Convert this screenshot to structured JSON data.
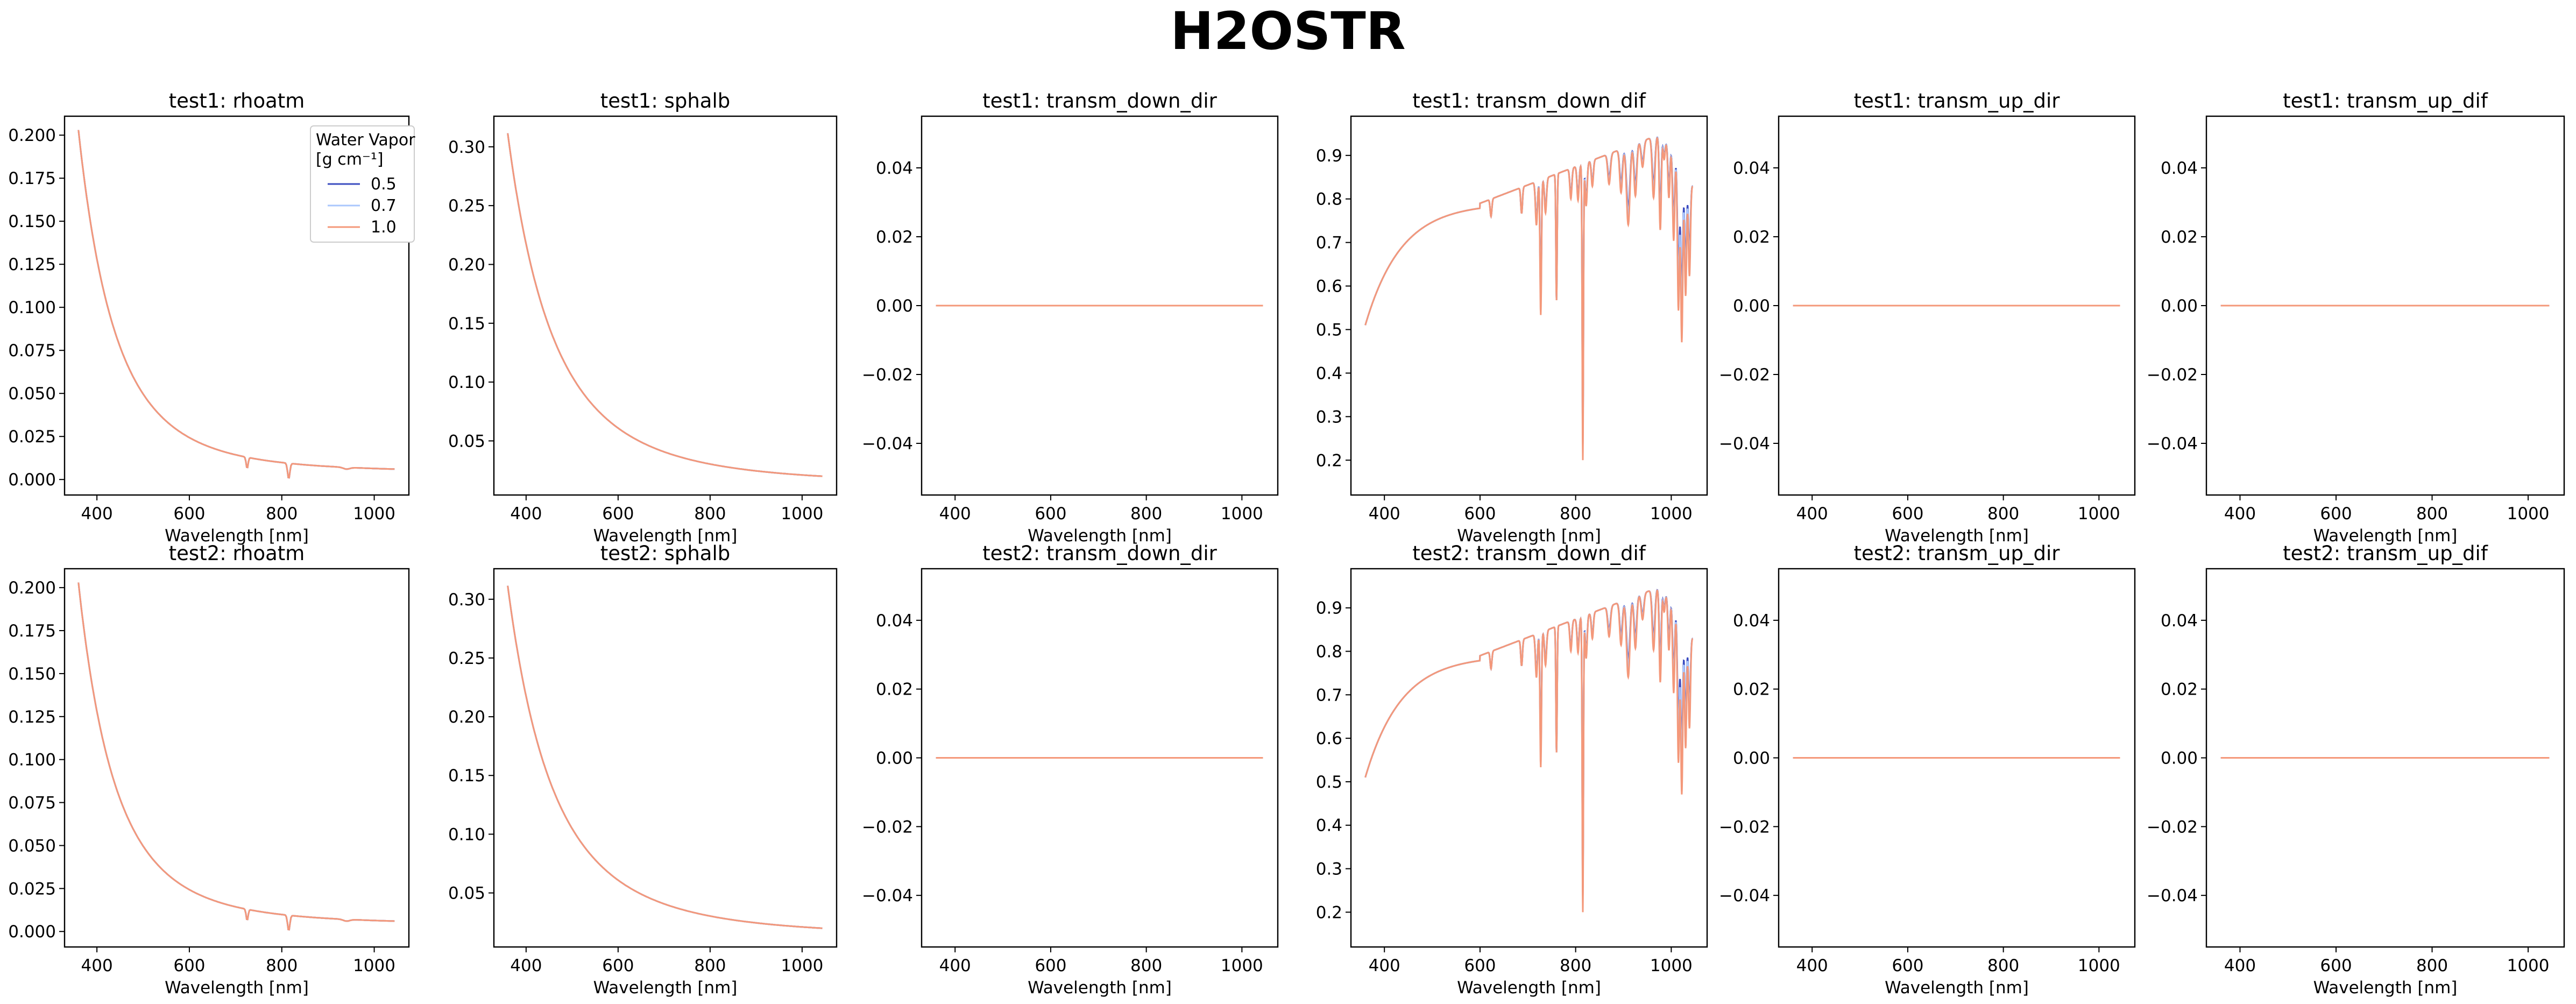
{
  "title": "H2OSTR",
  "legend": {
    "title_line1": "Water Vapor",
    "title_line2": "[g cm⁻¹]",
    "placement": "upper-right of first panel",
    "entries": [
      {
        "label": "0.5",
        "color": "#3b4cc0"
      },
      {
        "label": "0.7",
        "color": "#aac7fd"
      },
      {
        "label": "1.0",
        "color": "#f4987a"
      }
    ]
  },
  "chart_data": [
    {
      "type": "line",
      "title": "test1: rhoatm",
      "xlabel": "Wavelength [nm]",
      "ylabel": "",
      "xlim": [
        330,
        1075
      ],
      "ylim": [
        -0.009,
        0.211
      ],
      "xticks": [
        400,
        600,
        800,
        1000
      ],
      "yticks": [
        0.0,
        0.025,
        0.05,
        0.075,
        0.1,
        0.125,
        0.15,
        0.175,
        0.2
      ],
      "ytick_labels": [
        "0.000",
        "0.025",
        "0.050",
        "0.075",
        "0.100",
        "0.125",
        "0.150",
        "0.175",
        "0.200"
      ],
      "kind": "rhoatm",
      "legend": true,
      "series_names": [
        "0.5",
        "0.7",
        "1.0"
      ],
      "x_range": [
        360,
        1045
      ],
      "grid": false
    },
    {
      "type": "line",
      "title": "test1: sphalb",
      "xlabel": "Wavelength [nm]",
      "ylabel": "",
      "xlim": [
        330,
        1075
      ],
      "ylim": [
        0.004,
        0.326
      ],
      "xticks": [
        400,
        600,
        800,
        1000
      ],
      "yticks": [
        0.05,
        0.1,
        0.15,
        0.2,
        0.25,
        0.3
      ],
      "ytick_labels": [
        "0.05",
        "0.10",
        "0.15",
        "0.20",
        "0.25",
        "0.30"
      ],
      "kind": "sphalb",
      "legend": false,
      "series_names": [
        "0.5",
        "0.7",
        "1.0"
      ],
      "x_range": [
        360,
        1045
      ],
      "grid": false
    },
    {
      "type": "line",
      "title": "test1: transm_down_dir",
      "xlabel": "Wavelength [nm]",
      "ylabel": "",
      "xlim": [
        330,
        1075
      ],
      "ylim": [
        -0.055,
        0.055
      ],
      "xticks": [
        400,
        600,
        800,
        1000
      ],
      "yticks": [
        -0.04,
        -0.02,
        0.0,
        0.02,
        0.04
      ],
      "ytick_labels": [
        "−0.04",
        "−0.02",
        "0.00",
        "0.02",
        "0.04"
      ],
      "kind": "zero",
      "legend": false,
      "series_names": [
        "0.5",
        "0.7",
        "1.0"
      ],
      "x_range": [
        360,
        1045
      ],
      "grid": false
    },
    {
      "type": "line",
      "title": "test1: transm_down_dif",
      "xlabel": "Wavelength [nm]",
      "ylabel": "",
      "xlim": [
        330,
        1075
      ],
      "ylim": [
        0.12,
        0.99
      ],
      "xticks": [
        400,
        600,
        800,
        1000
      ],
      "yticks": [
        0.2,
        0.3,
        0.4,
        0.5,
        0.6,
        0.7,
        0.8,
        0.9
      ],
      "ytick_labels": [
        "0.2",
        "0.3",
        "0.4",
        "0.5",
        "0.6",
        "0.7",
        "0.8",
        "0.9"
      ],
      "kind": "tdif",
      "legend": false,
      "series_names": [
        "0.5",
        "0.7",
        "1.0"
      ],
      "x_range": [
        360,
        1045
      ],
      "grid": false
    },
    {
      "type": "line",
      "title": "test1: transm_up_dir",
      "xlabel": "Wavelength [nm]",
      "ylabel": "",
      "xlim": [
        330,
        1075
      ],
      "ylim": [
        -0.055,
        0.055
      ],
      "xticks": [
        400,
        600,
        800,
        1000
      ],
      "yticks": [
        -0.04,
        -0.02,
        0.0,
        0.02,
        0.04
      ],
      "ytick_labels": [
        "−0.04",
        "−0.02",
        "0.00",
        "0.02",
        "0.04"
      ],
      "kind": "zero",
      "legend": false,
      "series_names": [
        "0.5",
        "0.7",
        "1.0"
      ],
      "x_range": [
        360,
        1045
      ],
      "grid": false
    },
    {
      "type": "line",
      "title": "test1: transm_up_dif",
      "xlabel": "Wavelength [nm]",
      "ylabel": "",
      "xlim": [
        330,
        1075
      ],
      "ylim": [
        -0.055,
        0.055
      ],
      "xticks": [
        400,
        600,
        800,
        1000
      ],
      "yticks": [
        -0.04,
        -0.02,
        0.0,
        0.02,
        0.04
      ],
      "ytick_labels": [
        "−0.04",
        "−0.02",
        "0.00",
        "0.02",
        "0.04"
      ],
      "kind": "zero",
      "legend": false,
      "series_names": [
        "0.5",
        "0.7",
        "1.0"
      ],
      "x_range": [
        360,
        1045
      ],
      "grid": false
    },
    {
      "type": "line",
      "title": "test2: rhoatm",
      "xlabel": "Wavelength [nm]",
      "ylabel": "",
      "xlim": [
        330,
        1075
      ],
      "ylim": [
        -0.009,
        0.211
      ],
      "xticks": [
        400,
        600,
        800,
        1000
      ],
      "yticks": [
        0.0,
        0.025,
        0.05,
        0.075,
        0.1,
        0.125,
        0.15,
        0.175,
        0.2
      ],
      "ytick_labels": [
        "0.000",
        "0.025",
        "0.050",
        "0.075",
        "0.100",
        "0.125",
        "0.150",
        "0.175",
        "0.200"
      ],
      "kind": "rhoatm",
      "legend": false,
      "series_names": [
        "0.5",
        "0.7",
        "1.0"
      ],
      "x_range": [
        360,
        1045
      ],
      "grid": false
    },
    {
      "type": "line",
      "title": "test2: sphalb",
      "xlabel": "Wavelength [nm]",
      "ylabel": "",
      "xlim": [
        330,
        1075
      ],
      "ylim": [
        0.004,
        0.326
      ],
      "xticks": [
        400,
        600,
        800,
        1000
      ],
      "yticks": [
        0.05,
        0.1,
        0.15,
        0.2,
        0.25,
        0.3
      ],
      "ytick_labels": [
        "0.05",
        "0.10",
        "0.15",
        "0.20",
        "0.25",
        "0.30"
      ],
      "kind": "sphalb",
      "legend": false,
      "series_names": [
        "0.5",
        "0.7",
        "1.0"
      ],
      "x_range": [
        360,
        1045
      ],
      "grid": false
    },
    {
      "type": "line",
      "title": "test2: transm_down_dir",
      "xlabel": "Wavelength [nm]",
      "ylabel": "",
      "xlim": [
        330,
        1075
      ],
      "ylim": [
        -0.055,
        0.055
      ],
      "xticks": [
        400,
        600,
        800,
        1000
      ],
      "yticks": [
        -0.04,
        -0.02,
        0.0,
        0.02,
        0.04
      ],
      "ytick_labels": [
        "−0.04",
        "−0.02",
        "0.00",
        "0.02",
        "0.04"
      ],
      "kind": "zero",
      "legend": false,
      "series_names": [
        "0.5",
        "0.7",
        "1.0"
      ],
      "x_range": [
        360,
        1045
      ],
      "grid": false
    },
    {
      "type": "line",
      "title": "test2: transm_down_dif",
      "xlabel": "Wavelength [nm]",
      "ylabel": "",
      "xlim": [
        330,
        1075
      ],
      "ylim": [
        0.12,
        0.99
      ],
      "xticks": [
        400,
        600,
        800,
        1000
      ],
      "yticks": [
        0.2,
        0.3,
        0.4,
        0.5,
        0.6,
        0.7,
        0.8,
        0.9
      ],
      "ytick_labels": [
        "0.2",
        "0.3",
        "0.4",
        "0.5",
        "0.6",
        "0.7",
        "0.8",
        "0.9"
      ],
      "kind": "tdif",
      "legend": false,
      "series_names": [
        "0.5",
        "0.7",
        "1.0"
      ],
      "x_range": [
        360,
        1045
      ],
      "grid": false
    },
    {
      "type": "line",
      "title": "test2: transm_up_dir",
      "xlabel": "Wavelength [nm]",
      "ylabel": "",
      "xlim": [
        330,
        1075
      ],
      "ylim": [
        -0.055,
        0.055
      ],
      "xticks": [
        400,
        600,
        800,
        1000
      ],
      "yticks": [
        -0.04,
        -0.02,
        0.0,
        0.02,
        0.04
      ],
      "ytick_labels": [
        "−0.04",
        "−0.02",
        "0.00",
        "0.02",
        "0.04"
      ],
      "kind": "zero",
      "legend": false,
      "series_names": [
        "0.5",
        "0.7",
        "1.0"
      ],
      "x_range": [
        360,
        1045
      ],
      "grid": false
    },
    {
      "type": "line",
      "title": "test2: transm_up_dif",
      "xlabel": "Wavelength [nm]",
      "ylabel": "",
      "xlim": [
        330,
        1075
      ],
      "ylim": [
        -0.055,
        0.055
      ],
      "xticks": [
        400,
        600,
        800,
        1000
      ],
      "yticks": [
        -0.04,
        -0.02,
        0.0,
        0.02,
        0.04
      ],
      "ytick_labels": [
        "−0.04",
        "−0.02",
        "0.00",
        "0.02",
        "0.04"
      ],
      "kind": "zero",
      "legend": false,
      "series_names": [
        "0.5",
        "0.7",
        "1.0"
      ],
      "x_range": [
        360,
        1045
      ],
      "grid": false
    }
  ]
}
